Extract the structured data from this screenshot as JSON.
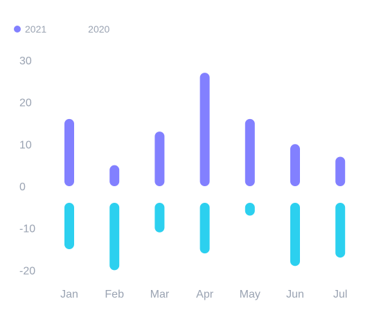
{
  "chart_data": {
    "type": "bar",
    "categories": [
      "Jan",
      "Feb",
      "Mar",
      "Apr",
      "May",
      "Jun",
      "Jul"
    ],
    "series": [
      {
        "name": "2021",
        "color": "#8280ff",
        "values": [
          16,
          5,
          13,
          27,
          16,
          10,
          7
        ],
        "visible": true
      },
      {
        "name": "2020",
        "color": "#2cd0ef",
        "values": [
          -15,
          -20,
          -11,
          -16,
          -7,
          -19,
          -17
        ],
        "visible": false
      }
    ],
    "yticks": [
      "30",
      "20",
      "10",
      "0",
      "-10",
      "-20"
    ],
    "ylim": [
      -22,
      32
    ],
    "grid": false,
    "legend_position": "top-left"
  }
}
